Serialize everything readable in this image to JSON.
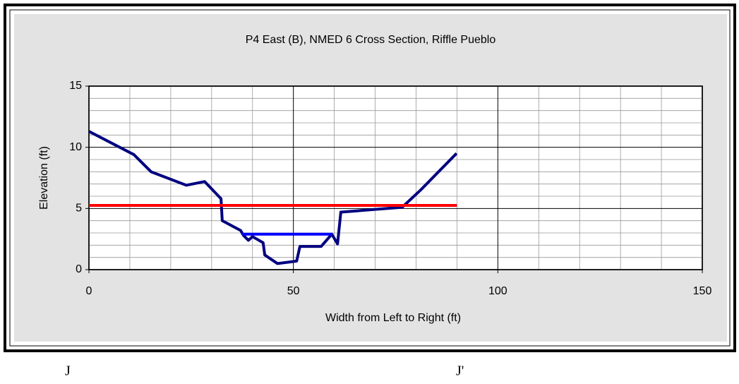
{
  "chart_data": {
    "type": "line",
    "title": "P4 East (B), NMED 6 Cross Section,  Riffle Pueblo",
    "xlabel": "Width from Left to Right (ft)",
    "ylabel": "Elevation (ft)",
    "xlim": [
      0,
      150
    ],
    "xticks": [
      0,
      50,
      100,
      150
    ],
    "ylim": [
      0,
      15
    ],
    "yticks": [
      0,
      5,
      10,
      15
    ],
    "grid": true,
    "series": [
      {
        "color": "#000080",
        "x": [
          0,
          11,
          15.2,
          23.8,
          28.3,
          32.3,
          32.6,
          37.1,
          37.8,
          39,
          40,
          42.6,
          43,
          46.1,
          50.8,
          51.6,
          56.8,
          59.4,
          60.8,
          61.6,
          76.6,
          81.1,
          89.9
        ],
        "values": [
          11.3,
          9.4,
          8.0,
          6.9,
          7.2,
          5.8,
          4.0,
          3.2,
          2.8,
          2.4,
          2.7,
          2.2,
          1.2,
          0.5,
          0.7,
          1.9,
          1.9,
          2.9,
          2.1,
          4.7,
          5.1,
          6.5,
          9.5
        ]
      },
      {
        "color": "#ff0000",
        "x": [
          0,
          90
        ],
        "values": [
          5.25,
          5.25
        ]
      },
      {
        "color": "#0000ff",
        "x": [
          37.5,
          59.5
        ],
        "values": [
          2.9,
          2.9
        ]
      }
    ],
    "annotations": [
      "J",
      "J'"
    ]
  }
}
